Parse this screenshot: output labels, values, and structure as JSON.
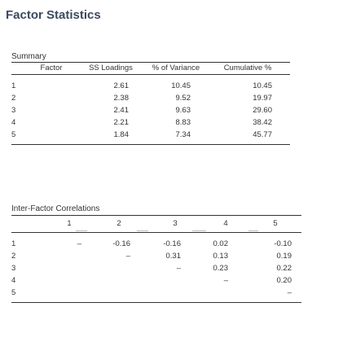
{
  "page_title": "Factor Statistics",
  "summary": {
    "title": "Summary",
    "headers": [
      "Factor",
      "SS Loadings",
      "% of Variance",
      "Cumulative %"
    ],
    "rows": [
      [
        "1",
        "2.61",
        "10.45",
        "10.45"
      ],
      [
        "2",
        "2.38",
        "9.52",
        "19.97"
      ],
      [
        "3",
        "2.41",
        "9.63",
        "29.60"
      ],
      [
        "4",
        "2.21",
        "8.83",
        "38.42"
      ],
      [
        "5",
        "1.84",
        "7.34",
        "45.77"
      ]
    ]
  },
  "correlations": {
    "title": "Inter-Factor Correlations",
    "headers": [
      "",
      "1",
      "2",
      "3",
      "4",
      "5"
    ],
    "rows": [
      [
        "1",
        "–",
        "-0.16",
        "-0.16",
        "0.02",
        "-0.10"
      ],
      [
        "2",
        "",
        "–",
        "0.31",
        "0.13",
        "0.19"
      ],
      [
        "3",
        "",
        "",
        "–",
        "0.23",
        "0.22"
      ],
      [
        "4",
        "",
        "",
        "",
        "–",
        "0.20"
      ],
      [
        "5",
        "",
        "",
        "",
        "",
        "–"
      ]
    ]
  }
}
